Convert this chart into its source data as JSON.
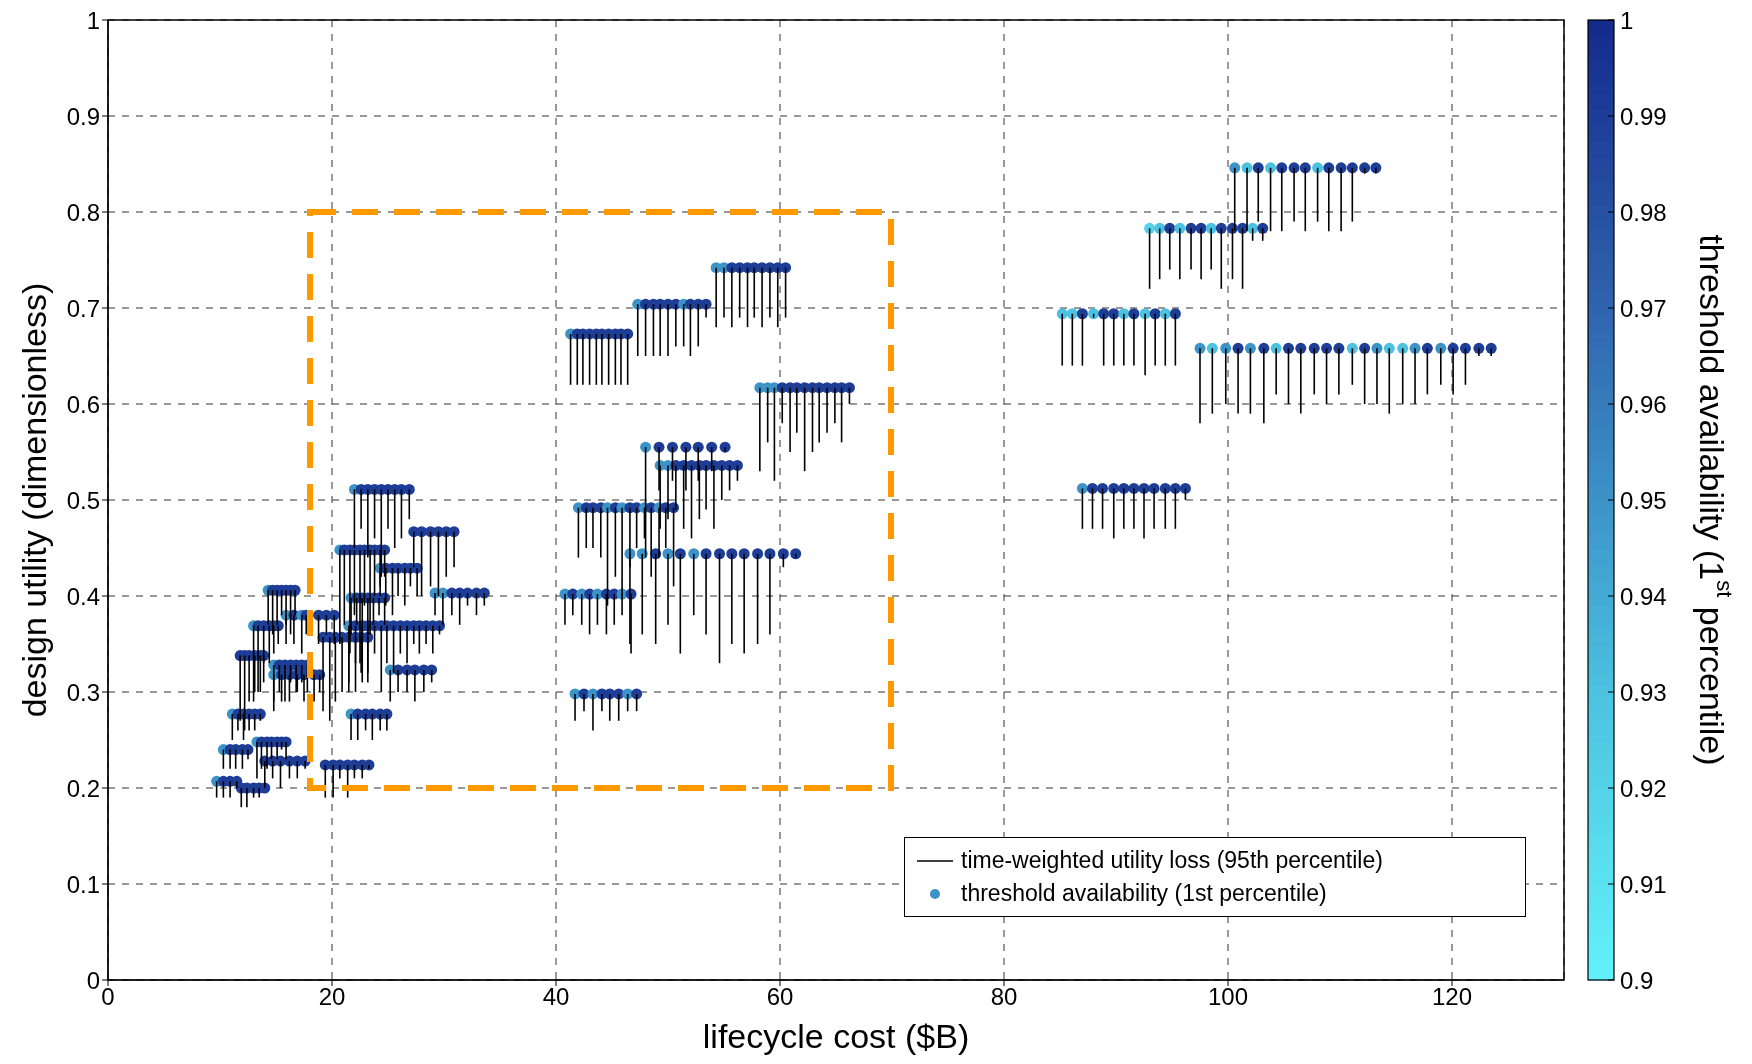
{
  "chart_data": {
    "type": "scatter",
    "xlabel": "lifecycle cost ($B)",
    "ylabel": "design utility (dimensionless)",
    "clabel": "threshold availability (1$^{st}$ percentile)",
    "xlim": [
      0,
      130
    ],
    "xticks": [
      0,
      20,
      40,
      60,
      80,
      100,
      120
    ],
    "ylim": [
      0,
      1
    ],
    "yticks": [
      0,
      0.1,
      0.2,
      0.3,
      0.4,
      0.5,
      0.6,
      0.7,
      0.8,
      0.9,
      1
    ],
    "clim": [
      0.9,
      1
    ],
    "cticks": [
      0.9,
      0.91,
      0.92,
      0.93,
      0.94,
      0.95,
      0.96,
      0.97,
      0.98,
      0.99,
      1
    ],
    "grid": true,
    "legend": "bottom right",
    "x": [
      22.0,
      22.6,
      23.2,
      23.8,
      24.4,
      25.0,
      25.6,
      26.2,
      26.9,
      27.3,
      28.0,
      28.8,
      29.5,
      30.2,
      30.9,
      20.7,
      21.1,
      21.6,
      22.0,
      22.5,
      22.9,
      23.4,
      23.8,
      24.3,
      24.7,
      24.3,
      24.8,
      25.4,
      25.9,
      26.5,
      27.0,
      27.6,
      14.3,
      14.7,
      15.1,
      15.5,
      15.9,
      16.3,
      16.7,
      29.2,
      29.9,
      30.7,
      31.4,
      32.1,
      32.9,
      33.6,
      21.7,
      22.2,
      22.7,
      23.2,
      23.7,
      24.2,
      24.7,
      15.9,
      16.6,
      17.3,
      17.7,
      18.8,
      19.5,
      20.2,
      21.5,
      22.1,
      22.7,
      23.2,
      23.8,
      24.4,
      24.9,
      25.5,
      26.1,
      26.7,
      27.3,
      27.8,
      28.4,
      29.0,
      29.6,
      13.0,
      13.4,
      13.9,
      14.4,
      14.8,
      15.2,
      19.2,
      19.8,
      20.3,
      20.9,
      21.5,
      22.1,
      22.6,
      23.2,
      11.8,
      12.2,
      12.6,
      13.1,
      13.6,
      13.9,
      14.8,
      15.3,
      15.8,
      16.3,
      16.8,
      17.3,
      17.8,
      14.8,
      15.5,
      16.2,
      16.9,
      17.5,
      18.4,
      18.9,
      25.2,
      25.9,
      26.7,
      27.4,
      28.2,
      28.9,
      11.1,
      11.6,
      12.1,
      12.6,
      13.1,
      13.6,
      21.7,
      22.3,
      23.0,
      23.6,
      24.3,
      24.9,
      13.3,
      13.7,
      14.2,
      14.6,
      15.1,
      15.5,
      15.9,
      10.3,
      10.9,
      11.4,
      12.0,
      12.5,
      14.0,
      14.7,
      15.4,
      16.2,
      16.9,
      17.6,
      19.4,
      20.1,
      20.7,
      21.4,
      22.0,
      22.7,
      23.3,
      9.7,
      10.3,
      10.9,
      11.5,
      11.9,
      12.4,
      13.0,
      13.5,
      14.0,
      54.3,
      55.0,
      55.7,
      56.4,
      57.1,
      57.7,
      58.4,
      59.1,
      59.8,
      60.5,
      47.3,
      48.0,
      48.7,
      49.3,
      50.0,
      50.7,
      51.4,
      52.0,
      52.7,
      53.4,
      41.3,
      41.9,
      42.4,
      43.0,
      43.6,
      44.1,
      44.7,
      45.3,
      45.8,
      46.4,
      58.2,
      58.9,
      59.5,
      60.2,
      60.9,
      61.5,
      62.2,
      62.9,
      63.5,
      64.2,
      64.9,
      65.5,
      66.2,
      48.0,
      49.2,
      50.4,
      51.6,
      52.7,
      53.9,
      55.1,
      49.3,
      50.0,
      50.7,
      51.4,
      52.1,
      52.8,
      53.4,
      54.1,
      54.8,
      55.5,
      56.2,
      42.0,
      42.7,
      43.3,
      44.0,
      44.6,
      45.3,
      45.9,
      46.6,
      47.2,
      47.9,
      48.5,
      49.2,
      49.8,
      50.5,
      46.6,
      47.7,
      48.9,
      50.0,
      51.1,
      52.3,
      53.4,
      54.6,
      55.7,
      56.8,
      58.0,
      59.1,
      60.3,
      61.4,
      40.8,
      41.5,
      42.3,
      43.0,
      43.7,
      44.5,
      45.2,
      45.9,
      46.7,
      41.7,
      42.5,
      43.3,
      44.1,
      44.8,
      45.6,
      46.4,
      47.2,
      100.6,
      101.7,
      102.7,
      103.8,
      104.8,
      105.9,
      106.9,
      108.0,
      109.0,
      110.1,
      111.1,
      112.2,
      113.2,
      93.0,
      93.9,
      94.8,
      95.7,
      96.7,
      97.6,
      98.5,
      99.4,
      100.4,
      101.3,
      102.2,
      103.1,
      85.2,
      86.1,
      87.0,
      88.0,
      88.9,
      89.8,
      90.7,
      91.6,
      92.6,
      93.5,
      94.4,
      95.3,
      97.5,
      98.6,
      99.8,
      100.9,
      102.0,
      103.2,
      104.3,
      105.4,
      106.5,
      107.7,
      108.8,
      109.9,
      111.1,
      112.2,
      113.3,
      114.4,
      115.6,
      116.7,
      117.8,
      119.0,
      120.1,
      121.2,
      122.4,
      123.5,
      87.0,
      87.9,
      88.8,
      89.8,
      90.7,
      91.6,
      92.5,
      93.4,
      94.4,
      95.3,
      96.2
    ],
    "annotations": [
      "time-weighted utility loss (95th percentile)"
    ],
    "series": [
      {
        "name": "threshold availability (1st percentile)",
        "marker": "circle",
        "errors": [
          [
            0.45,
            0.511
          ],
          [
            0.47,
            0.511
          ],
          [
            0.44,
            0.511
          ],
          [
            0.46,
            0.511
          ],
          [
            0.42,
            0.511
          ],
          [
            0.47,
            0.511
          ],
          [
            0.45,
            0.511
          ],
          [
            0.46,
            0.511
          ],
          [
            0.48,
            0.511
          ],
          [
            0.43,
            0.467
          ],
          [
            0.4,
            0.467
          ],
          [
            0.41,
            0.467
          ],
          [
            0.4,
            0.467
          ],
          [
            0.42,
            0.467
          ],
          [
            0.43,
            0.467
          ],
          [
            0.35,
            0.448
          ],
          [
            0.37,
            0.448
          ],
          [
            0.34,
            0.448
          ],
          [
            0.38,
            0.448
          ],
          [
            0.33,
            0.448
          ],
          [
            0.39,
            0.448
          ],
          [
            0.36,
            0.448
          ],
          [
            0.4,
            0.448
          ],
          [
            0.41,
            0.448
          ],
          [
            0.42,
            0.448
          ],
          [
            0.4,
            0.429
          ],
          [
            0.39,
            0.429
          ],
          [
            0.38,
            0.429
          ],
          [
            0.4,
            0.429
          ],
          [
            0.39,
            0.429
          ],
          [
            0.41,
            0.429
          ],
          [
            0.4,
            0.429
          ],
          [
            0.37,
            0.406
          ],
          [
            0.36,
            0.406
          ],
          [
            0.37,
            0.406
          ],
          [
            0.38,
            0.406
          ],
          [
            0.37,
            0.406
          ],
          [
            0.36,
            0.406
          ],
          [
            0.38,
            0.406
          ],
          [
            0.38,
            0.403
          ],
          [
            0.37,
            0.403
          ],
          [
            0.38,
            0.403
          ],
          [
            0.37,
            0.403
          ],
          [
            0.39,
            0.403
          ],
          [
            0.38,
            0.403
          ],
          [
            0.39,
            0.403
          ],
          [
            0.36,
            0.398
          ],
          [
            0.37,
            0.398
          ],
          [
            0.35,
            0.398
          ],
          [
            0.36,
            0.398
          ],
          [
            0.37,
            0.398
          ],
          [
            0.38,
            0.398
          ],
          [
            0.37,
            0.398
          ],
          [
            0.35,
            0.38
          ],
          [
            0.35,
            0.38
          ],
          [
            0.34,
            0.38
          ],
          [
            0.36,
            0.38
          ],
          [
            0.35,
            0.38
          ],
          [
            0.36,
            0.38
          ],
          [
            0.35,
            0.38
          ],
          [
            0.3,
            0.369
          ],
          [
            0.33,
            0.369
          ],
          [
            0.31,
            0.369
          ],
          [
            0.32,
            0.369
          ],
          [
            0.34,
            0.369
          ],
          [
            0.3,
            0.369
          ],
          [
            0.33,
            0.369
          ],
          [
            0.32,
            0.369
          ],
          [
            0.34,
            0.369
          ],
          [
            0.33,
            0.369
          ],
          [
            0.35,
            0.369
          ],
          [
            0.34,
            0.369
          ],
          [
            0.35,
            0.369
          ],
          [
            0.34,
            0.369
          ],
          [
            0.36,
            0.369
          ],
          [
            0.29,
            0.369
          ],
          [
            0.3,
            0.369
          ],
          [
            0.33,
            0.369
          ],
          [
            0.33,
            0.369
          ],
          [
            0.34,
            0.369
          ],
          [
            0.35,
            0.369
          ],
          [
            0.28,
            0.357
          ],
          [
            0.27,
            0.357
          ],
          [
            0.29,
            0.357
          ],
          [
            0.3,
            0.357
          ],
          [
            0.31,
            0.357
          ],
          [
            0.3,
            0.357
          ],
          [
            0.32,
            0.357
          ],
          [
            0.31,
            0.357
          ],
          [
            0.27,
            0.338
          ],
          [
            0.26,
            0.338
          ],
          [
            0.29,
            0.338
          ],
          [
            0.3,
            0.338
          ],
          [
            0.3,
            0.338
          ],
          [
            0.31,
            0.338
          ],
          [
            0.29,
            0.328
          ],
          [
            0.3,
            0.328
          ],
          [
            0.29,
            0.328
          ],
          [
            0.31,
            0.328
          ],
          [
            0.3,
            0.328
          ],
          [
            0.31,
            0.328
          ],
          [
            0.3,
            0.328
          ],
          [
            0.28,
            0.318
          ],
          [
            0.29,
            0.318
          ],
          [
            0.29,
            0.318
          ],
          [
            0.3,
            0.318
          ],
          [
            0.29,
            0.318
          ],
          [
            0.29,
            0.318
          ],
          [
            0.3,
            0.318
          ],
          [
            0.29,
            0.323
          ],
          [
            0.3,
            0.323
          ],
          [
            0.3,
            0.323
          ],
          [
            0.29,
            0.323
          ],
          [
            0.3,
            0.323
          ],
          [
            0.31,
            0.323
          ],
          [
            0.25,
            0.277
          ],
          [
            0.26,
            0.277
          ],
          [
            0.25,
            0.277
          ],
          [
            0.26,
            0.277
          ],
          [
            0.26,
            0.277
          ],
          [
            0.27,
            0.277
          ],
          [
            0.25,
            0.277
          ],
          [
            0.25,
            0.277
          ],
          [
            0.26,
            0.277
          ],
          [
            0.25,
            0.277
          ],
          [
            0.26,
            0.277
          ],
          [
            0.26,
            0.277
          ],
          [
            0.21,
            0.248
          ],
          [
            0.22,
            0.248
          ],
          [
            0.22,
            0.248
          ],
          [
            0.23,
            0.248
          ],
          [
            0.23,
            0.248
          ],
          [
            0.24,
            0.248
          ],
          [
            0.23,
            0.248
          ],
          [
            0.22,
            0.24
          ],
          [
            0.22,
            0.24
          ],
          [
            0.22,
            0.24
          ],
          [
            0.22,
            0.24
          ],
          [
            0.23,
            0.24
          ],
          [
            0.2,
            0.228
          ],
          [
            0.21,
            0.228
          ],
          [
            0.2,
            0.228
          ],
          [
            0.21,
            0.228
          ],
          [
            0.21,
            0.228
          ],
          [
            0.22,
            0.228
          ],
          [
            0.19,
            0.224
          ],
          [
            0.19,
            0.224
          ],
          [
            0.21,
            0.224
          ],
          [
            0.19,
            0.224
          ],
          [
            0.21,
            0.224
          ],
          [
            0.21,
            0.224
          ],
          [
            0.22,
            0.224
          ],
          [
            0.19,
            0.207
          ],
          [
            0.19,
            0.207
          ],
          [
            0.19,
            0.207
          ],
          [
            0.2,
            0.207
          ],
          [
            0.18,
            0.2
          ],
          [
            0.18,
            0.2
          ],
          [
            0.19,
            0.2
          ],
          [
            0.19,
            0.2
          ],
          [
            0.2,
            0.2
          ],
          [
            0.68,
            0.742
          ],
          [
            0.69,
            0.742
          ],
          [
            0.68,
            0.742
          ],
          [
            0.69,
            0.742
          ],
          [
            0.68,
            0.742
          ],
          [
            0.69,
            0.742
          ],
          [
            0.68,
            0.742
          ],
          [
            0.69,
            0.742
          ],
          [
            0.68,
            0.742
          ],
          [
            0.69,
            0.742
          ],
          [
            0.65,
            0.704
          ],
          [
            0.65,
            0.704
          ],
          [
            0.65,
            0.704
          ],
          [
            0.65,
            0.704
          ],
          [
            0.65,
            0.704
          ],
          [
            0.66,
            0.704
          ],
          [
            0.66,
            0.704
          ],
          [
            0.65,
            0.704
          ],
          [
            0.66,
            0.704
          ],
          [
            0.69,
            0.704
          ],
          [
            0.62,
            0.673
          ],
          [
            0.62,
            0.673
          ],
          [
            0.62,
            0.673
          ],
          [
            0.62,
            0.673
          ],
          [
            0.62,
            0.673
          ],
          [
            0.62,
            0.673
          ],
          [
            0.62,
            0.673
          ],
          [
            0.62,
            0.673
          ],
          [
            0.62,
            0.673
          ],
          [
            0.62,
            0.673
          ],
          [
            0.53,
            0.617
          ],
          [
            0.56,
            0.617
          ],
          [
            0.52,
            0.617
          ],
          [
            0.58,
            0.617
          ],
          [
            0.55,
            0.617
          ],
          [
            0.57,
            0.617
          ],
          [
            0.53,
            0.617
          ],
          [
            0.55,
            0.617
          ],
          [
            0.56,
            0.617
          ],
          [
            0.57,
            0.617
          ],
          [
            0.58,
            0.617
          ],
          [
            0.56,
            0.617
          ],
          [
            0.6,
            0.617
          ],
          [
            0.44,
            0.555
          ],
          [
            0.51,
            0.555
          ],
          [
            0.52,
            0.555
          ],
          [
            0.51,
            0.555
          ],
          [
            0.52,
            0.555
          ],
          [
            0.53,
            0.555
          ],
          [
            0.55,
            0.555
          ],
          [
            0.47,
            0.536
          ],
          [
            0.48,
            0.536
          ],
          [
            0.49,
            0.536
          ],
          [
            0.47,
            0.536
          ],
          [
            0.46,
            0.536
          ],
          [
            0.48,
            0.536
          ],
          [
            0.49,
            0.536
          ],
          [
            0.47,
            0.536
          ],
          [
            0.5,
            0.536
          ],
          [
            0.51,
            0.536
          ],
          [
            0.52,
            0.536
          ],
          [
            0.44,
            0.492
          ],
          [
            0.45,
            0.492
          ],
          [
            0.45,
            0.492
          ],
          [
            0.44,
            0.492
          ],
          [
            0.39,
            0.492
          ],
          [
            0.42,
            0.492
          ],
          [
            0.4,
            0.492
          ],
          [
            0.43,
            0.492
          ],
          [
            0.45,
            0.492
          ],
          [
            0.46,
            0.492
          ],
          [
            0.42,
            0.492
          ],
          [
            0.44,
            0.492
          ],
          [
            0.45,
            0.492
          ],
          [
            0.41,
            0.492
          ],
          [
            0.35,
            0.444
          ],
          [
            0.36,
            0.444
          ],
          [
            0.35,
            0.444
          ],
          [
            0.37,
            0.444
          ],
          [
            0.34,
            0.444
          ],
          [
            0.38,
            0.444
          ],
          [
            0.36,
            0.444
          ],
          [
            0.33,
            0.444
          ],
          [
            0.35,
            0.444
          ],
          [
            0.34,
            0.444
          ],
          [
            0.35,
            0.444
          ],
          [
            0.36,
            0.444
          ],
          [
            0.43,
            0.444
          ],
          [
            0.44,
            0.444
          ],
          [
            0.37,
            0.402
          ],
          [
            0.38,
            0.402
          ],
          [
            0.37,
            0.402
          ],
          [
            0.36,
            0.402
          ],
          [
            0.37,
            0.402
          ],
          [
            0.36,
            0.402
          ],
          [
            0.37,
            0.402
          ],
          [
            0.38,
            0.402
          ],
          [
            0.34,
            0.402
          ],
          [
            0.27,
            0.298
          ],
          [
            0.28,
            0.298
          ],
          [
            0.26,
            0.298
          ],
          [
            0.28,
            0.298
          ],
          [
            0.27,
            0.298
          ],
          [
            0.27,
            0.298
          ],
          [
            0.28,
            0.298
          ],
          [
            0.28,
            0.298
          ],
          [
            0.78,
            0.846
          ],
          [
            0.78,
            0.846
          ],
          [
            0.79,
            0.846
          ],
          [
            0.78,
            0.846
          ],
          [
            0.78,
            0.846
          ],
          [
            0.79,
            0.846
          ],
          [
            0.78,
            0.846
          ],
          [
            0.79,
            0.846
          ],
          [
            0.78,
            0.846
          ],
          [
            0.78,
            0.846
          ],
          [
            0.79,
            0.846
          ],
          [
            0.84,
            0.846
          ],
          [
            0.84,
            0.846
          ],
          [
            0.72,
            0.783
          ],
          [
            0.73,
            0.783
          ],
          [
            0.74,
            0.783
          ],
          [
            0.73,
            0.783
          ],
          [
            0.74,
            0.783
          ],
          [
            0.73,
            0.783
          ],
          [
            0.74,
            0.783
          ],
          [
            0.72,
            0.783
          ],
          [
            0.73,
            0.783
          ],
          [
            0.72,
            0.783
          ],
          [
            0.77,
            0.783
          ],
          [
            0.77,
            0.783
          ],
          [
            0.64,
            0.694
          ],
          [
            0.64,
            0.694
          ],
          [
            0.64,
            0.694
          ],
          [
            0.69,
            0.694
          ],
          [
            0.64,
            0.694
          ],
          [
            0.64,
            0.694
          ],
          [
            0.64,
            0.694
          ],
          [
            0.64,
            0.694
          ],
          [
            0.63,
            0.694
          ],
          [
            0.64,
            0.694
          ],
          [
            0.64,
            0.694
          ],
          [
            0.64,
            0.694
          ],
          [
            0.58,
            0.658
          ],
          [
            0.59,
            0.658
          ],
          [
            0.6,
            0.658
          ],
          [
            0.59,
            0.658
          ],
          [
            0.59,
            0.658
          ],
          [
            0.58,
            0.658
          ],
          [
            0.61,
            0.658
          ],
          [
            0.6,
            0.658
          ],
          [
            0.59,
            0.658
          ],
          [
            0.61,
            0.658
          ],
          [
            0.6,
            0.658
          ],
          [
            0.61,
            0.658
          ],
          [
            0.62,
            0.658
          ],
          [
            0.6,
            0.658
          ],
          [
            0.6,
            0.658
          ],
          [
            0.59,
            0.658
          ],
          [
            0.6,
            0.658
          ],
          [
            0.6,
            0.658
          ],
          [
            0.61,
            0.658
          ],
          [
            0.62,
            0.658
          ],
          [
            0.61,
            0.658
          ],
          [
            0.62,
            0.658
          ],
          [
            0.65,
            0.658
          ],
          [
            0.65,
            0.658
          ],
          [
            0.47,
            0.512
          ],
          [
            0.47,
            0.512
          ],
          [
            0.47,
            0.512
          ],
          [
            0.46,
            0.512
          ],
          [
            0.47,
            0.512
          ],
          [
            0.47,
            0.512
          ],
          [
            0.46,
            0.512
          ],
          [
            0.47,
            0.512
          ],
          [
            0.47,
            0.512
          ],
          [
            0.47,
            0.512
          ],
          [
            0.5,
            0.512
          ]
        ],
        "values": [
          0.511,
          0.511,
          0.511,
          0.511,
          0.511,
          0.511,
          0.511,
          0.511,
          0.511,
          0.467,
          0.467,
          0.467,
          0.467,
          0.467,
          0.467,
          0.448,
          0.448,
          0.448,
          0.448,
          0.448,
          0.448,
          0.448,
          0.448,
          0.448,
          0.448,
          0.429,
          0.429,
          0.429,
          0.429,
          0.429,
          0.429,
          0.429,
          0.406,
          0.406,
          0.406,
          0.406,
          0.406,
          0.406,
          0.406,
          0.403,
          0.403,
          0.403,
          0.403,
          0.403,
          0.403,
          0.403,
          0.398,
          0.398,
          0.398,
          0.398,
          0.398,
          0.398,
          0.398,
          0.38,
          0.38,
          0.38,
          0.38,
          0.38,
          0.38,
          0.38,
          0.369,
          0.369,
          0.369,
          0.369,
          0.369,
          0.369,
          0.369,
          0.369,
          0.369,
          0.369,
          0.369,
          0.369,
          0.369,
          0.369,
          0.369,
          0.369,
          0.369,
          0.369,
          0.369,
          0.369,
          0.369,
          0.357,
          0.357,
          0.357,
          0.357,
          0.357,
          0.357,
          0.357,
          0.357,
          0.338,
          0.338,
          0.338,
          0.338,
          0.338,
          0.338,
          0.328,
          0.328,
          0.328,
          0.328,
          0.328,
          0.328,
          0.328,
          0.318,
          0.318,
          0.318,
          0.318,
          0.318,
          0.318,
          0.318,
          0.323,
          0.323,
          0.323,
          0.323,
          0.323,
          0.323,
          0.277,
          0.277,
          0.277,
          0.277,
          0.277,
          0.277,
          0.277,
          0.277,
          0.277,
          0.277,
          0.277,
          0.277,
          0.248,
          0.248,
          0.248,
          0.248,
          0.248,
          0.248,
          0.248,
          0.24,
          0.24,
          0.24,
          0.24,
          0.24,
          0.228,
          0.228,
          0.228,
          0.228,
          0.228,
          0.228,
          0.224,
          0.224,
          0.224,
          0.224,
          0.224,
          0.224,
          0.224,
          0.207,
          0.207,
          0.207,
          0.207,
          0.2,
          0.2,
          0.2,
          0.2,
          0.2,
          0.742,
          0.742,
          0.742,
          0.742,
          0.742,
          0.742,
          0.742,
          0.742,
          0.742,
          0.742,
          0.704,
          0.704,
          0.704,
          0.704,
          0.704,
          0.704,
          0.704,
          0.704,
          0.704,
          0.704,
          0.673,
          0.673,
          0.673,
          0.673,
          0.673,
          0.673,
          0.673,
          0.673,
          0.673,
          0.673,
          0.617,
          0.617,
          0.617,
          0.617,
          0.617,
          0.617,
          0.617,
          0.617,
          0.617,
          0.617,
          0.617,
          0.617,
          0.617,
          0.555,
          0.555,
          0.555,
          0.555,
          0.555,
          0.555,
          0.555,
          0.536,
          0.536,
          0.536,
          0.536,
          0.536,
          0.536,
          0.536,
          0.536,
          0.536,
          0.536,
          0.536,
          0.492,
          0.492,
          0.492,
          0.492,
          0.492,
          0.492,
          0.492,
          0.492,
          0.492,
          0.492,
          0.492,
          0.492,
          0.492,
          0.492,
          0.444,
          0.444,
          0.444,
          0.444,
          0.444,
          0.444,
          0.444,
          0.444,
          0.444,
          0.444,
          0.444,
          0.444,
          0.444,
          0.444,
          0.402,
          0.402,
          0.402,
          0.402,
          0.402,
          0.402,
          0.402,
          0.402,
          0.402,
          0.298,
          0.298,
          0.298,
          0.298,
          0.298,
          0.298,
          0.298,
          0.298,
          0.846,
          0.846,
          0.846,
          0.846,
          0.846,
          0.846,
          0.846,
          0.846,
          0.846,
          0.846,
          0.846,
          0.846,
          0.846,
          0.783,
          0.783,
          0.783,
          0.783,
          0.783,
          0.783,
          0.783,
          0.783,
          0.783,
          0.783,
          0.783,
          0.783,
          0.694,
          0.694,
          0.694,
          0.694,
          0.694,
          0.694,
          0.694,
          0.694,
          0.694,
          0.694,
          0.694,
          0.694,
          0.658,
          0.658,
          0.658,
          0.658,
          0.658,
          0.658,
          0.658,
          0.658,
          0.658,
          0.658,
          0.658,
          0.658,
          0.658,
          0.658,
          0.658,
          0.658,
          0.658,
          0.658,
          0.658,
          0.658,
          0.658,
          0.658,
          0.658,
          0.658,
          0.512,
          0.512,
          0.512,
          0.512,
          0.512,
          0.512,
          0.512,
          0.512,
          0.512,
          0.512,
          0.512
        ],
        "cvalues": [
          0.95,
          0.99,
          0.99,
          0.99,
          0.99,
          0.99,
          0.99,
          0.99,
          0.99,
          0.99,
          0.99,
          0.99,
          0.99,
          0.99,
          0.99,
          0.95,
          0.99,
          0.99,
          0.99,
          0.99,
          0.99,
          0.99,
          0.99,
          0.99,
          0.99,
          0.95,
          0.99,
          0.99,
          0.99,
          0.99,
          0.99,
          0.99,
          0.95,
          0.99,
          0.99,
          0.99,
          0.99,
          0.99,
          0.99,
          0.95,
          0.95,
          0.99,
          0.99,
          0.99,
          0.99,
          0.99,
          0.95,
          0.99,
          0.99,
          0.99,
          0.99,
          0.99,
          0.99,
          0.95,
          0.99,
          0.95,
          0.99,
          0.99,
          0.99,
          0.99,
          0.95,
          0.99,
          0.99,
          0.99,
          0.99,
          0.99,
          0.99,
          0.99,
          0.99,
          0.99,
          0.99,
          0.99,
          0.99,
          0.99,
          0.99,
          0.95,
          0.99,
          0.99,
          0.99,
          0.99,
          0.99,
          0.99,
          0.99,
          0.99,
          0.99,
          0.99,
          0.99,
          0.99,
          0.99,
          0.99,
          0.99,
          0.99,
          0.99,
          0.99,
          0.99,
          0.95,
          0.99,
          0.99,
          0.99,
          0.99,
          0.99,
          0.99,
          0.95,
          0.99,
          0.99,
          0.99,
          0.99,
          0.99,
          0.99,
          0.95,
          0.99,
          0.99,
          0.99,
          0.99,
          0.99,
          0.95,
          0.99,
          0.99,
          0.99,
          0.99,
          0.99,
          0.95,
          0.99,
          0.99,
          0.99,
          0.99,
          0.99,
          0.95,
          0.99,
          0.99,
          0.99,
          0.99,
          0.99,
          0.99,
          0.95,
          0.99,
          0.99,
          0.99,
          0.99,
          0.99,
          0.99,
          0.99,
          0.99,
          0.99,
          0.99,
          0.99,
          0.99,
          0.99,
          0.99,
          0.99,
          0.99,
          0.99,
          0.95,
          0.99,
          0.99,
          0.99,
          0.99,
          0.99,
          0.99,
          0.99,
          0.99,
          0.95,
          0.95,
          0.99,
          0.99,
          0.99,
          0.99,
          0.99,
          0.99,
          0.99,
          0.99,
          0.95,
          0.99,
          0.99,
          0.99,
          0.99,
          0.99,
          0.95,
          0.99,
          0.99,
          0.99,
          0.95,
          0.99,
          0.99,
          0.99,
          0.99,
          0.99,
          0.99,
          0.99,
          0.99,
          0.99,
          0.95,
          0.95,
          0.95,
          0.99,
          0.99,
          0.99,
          0.99,
          0.99,
          0.99,
          0.99,
          0.99,
          0.99,
          0.99,
          0.95,
          0.99,
          0.99,
          0.99,
          0.99,
          0.99,
          0.99,
          0.95,
          0.95,
          0.99,
          0.99,
          0.99,
          0.99,
          0.99,
          0.99,
          0.99,
          0.99,
          0.99,
          0.95,
          0.99,
          0.99,
          0.99,
          0.95,
          0.99,
          0.95,
          0.99,
          0.99,
          0.95,
          0.99,
          0.95,
          0.99,
          0.99,
          0.95,
          0.95,
          0.99,
          0.95,
          0.99,
          0.95,
          0.99,
          0.99,
          0.99,
          0.99,
          0.99,
          0.99,
          0.99,
          0.99,
          0.95,
          0.99,
          0.95,
          0.99,
          0.95,
          0.99,
          0.99,
          0.95,
          0.99,
          0.95,
          0.99,
          0.95,
          0.99,
          0.99,
          0.99,
          0.95,
          0.99,
          0.95,
          0.93,
          0.99,
          0.93,
          0.99,
          0.99,
          0.99,
          0.93,
          0.99,
          0.99,
          0.99,
          0.99,
          0.99,
          0.92,
          0.93,
          0.99,
          0.93,
          0.99,
          0.99,
          0.93,
          0.99,
          0.99,
          0.99,
          0.93,
          0.99,
          0.93,
          0.93,
          0.99,
          0.93,
          0.99,
          0.99,
          0.93,
          0.99,
          0.93,
          0.99,
          0.93,
          0.99,
          0.95,
          0.93,
          0.95,
          0.99,
          0.95,
          0.99,
          0.93,
          0.99,
          0.99,
          0.99,
          0.99,
          0.99,
          0.93,
          0.99,
          0.95,
          0.93,
          0.93,
          0.95,
          0.99,
          0.95,
          0.99,
          0.99,
          0.99,
          0.99,
          0.95,
          0.99,
          0.99,
          0.99,
          0.99,
          0.99,
          0.99,
          0.99,
          0.99,
          0.99,
          0.99
        ]
      }
    ]
  }
}
